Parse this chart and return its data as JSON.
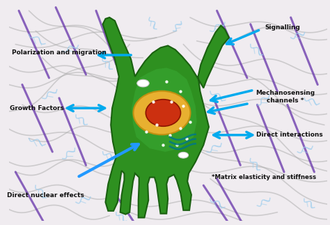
{
  "bg_color": "#f0ecf0",
  "cell_color": "#2e9020",
  "cell_edge_color": "#1a6010",
  "nucleus_outer": "#e8b030",
  "nucleus_inner": "#cc3010",
  "arrow_color": "#00aaee",
  "fiber_color_gray": "#aaaaaa",
  "fiber_color_purple": "#6633aa",
  "fiber_color_blue_light": "#99ccee",
  "actin_color": "#007788",
  "labels": {
    "polarization": "Polarization and migration",
    "growth": "Growth Factors",
    "nuclear": "Direct nuclear effects",
    "signalling": "Signalling",
    "mechanosensing": "Mechanosensing\nchannels *",
    "direct": "Direct interactions",
    "matrix": "*Matrix elasticity and stiffness"
  },
  "figsize": [
    4.74,
    3.23
  ],
  "dpi": 100
}
